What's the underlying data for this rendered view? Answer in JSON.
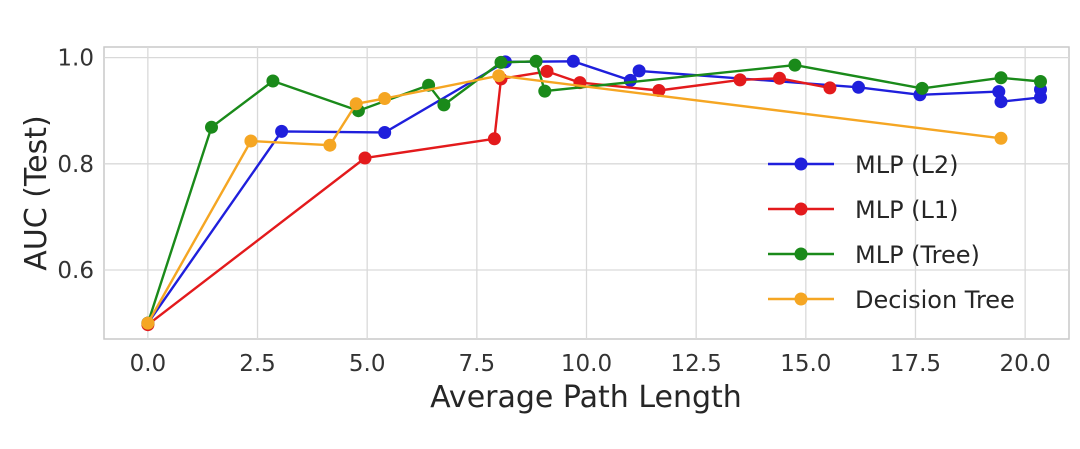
{
  "chart_data": {
    "type": "line",
    "title": "",
    "xlabel": "Average Path Length",
    "ylabel": "AUC (Test)",
    "xlim": [
      -1.0,
      21.0
    ],
    "ylim": [
      0.47,
      1.02
    ],
    "xticks": [
      0.0,
      2.5,
      5.0,
      7.5,
      10.0,
      12.5,
      15.0,
      17.5,
      20.0
    ],
    "xtick_labels": [
      "0.0",
      "2.5",
      "5.0",
      "7.5",
      "10.0",
      "12.5",
      "15.0",
      "17.5",
      "20.0"
    ],
    "yticks": [
      0.6,
      0.8,
      1.0
    ],
    "ytick_labels": [
      "0.6",
      "0.8",
      "1.0"
    ],
    "grid": true,
    "legend": "center-right",
    "series": [
      {
        "name": "MLP (L2)",
        "color": "#1f1fdc",
        "points": [
          [
            0.0,
            0.5
          ],
          [
            3.05,
            0.861
          ],
          [
            5.4,
            0.859
          ],
          [
            8.15,
            0.992
          ],
          [
            9.7,
            0.993
          ],
          [
            11.0,
            0.957
          ],
          [
            11.2,
            0.975
          ],
          [
            16.2,
            0.944
          ],
          [
            17.6,
            0.93
          ],
          [
            19.4,
            0.936
          ],
          [
            19.45,
            0.917
          ],
          [
            20.35,
            0.925
          ],
          [
            20.35,
            0.94
          ]
        ]
      },
      {
        "name": "MLP (L1)",
        "color": "#e31a1c",
        "points": [
          [
            0.0,
            0.497
          ],
          [
            4.95,
            0.811
          ],
          [
            7.9,
            0.847
          ],
          [
            8.05,
            0.96
          ],
          [
            9.1,
            0.974
          ],
          [
            9.85,
            0.953
          ],
          [
            11.65,
            0.938
          ],
          [
            13.5,
            0.958
          ],
          [
            14.4,
            0.961
          ],
          [
            15.55,
            0.943
          ]
        ]
      },
      {
        "name": "MLP (Tree)",
        "color": "#1a8a1a",
        "points": [
          [
            0.0,
            0.5
          ],
          [
            1.45,
            0.869
          ],
          [
            2.85,
            0.956
          ],
          [
            4.8,
            0.9
          ],
          [
            6.4,
            0.948
          ],
          [
            6.75,
            0.911
          ],
          [
            8.05,
            0.991
          ],
          [
            8.85,
            0.993
          ],
          [
            9.05,
            0.937
          ],
          [
            14.75,
            0.986
          ],
          [
            17.65,
            0.942
          ],
          [
            19.45,
            0.962
          ],
          [
            20.35,
            0.955
          ]
        ]
      },
      {
        "name": "Decision Tree",
        "color": "#f5a623",
        "points": [
          [
            0.0,
            0.5
          ],
          [
            2.35,
            0.843
          ],
          [
            4.15,
            0.835
          ],
          [
            4.75,
            0.913
          ],
          [
            5.4,
            0.923
          ],
          [
            8.0,
            0.966
          ],
          [
            19.45,
            0.848
          ]
        ]
      }
    ]
  }
}
